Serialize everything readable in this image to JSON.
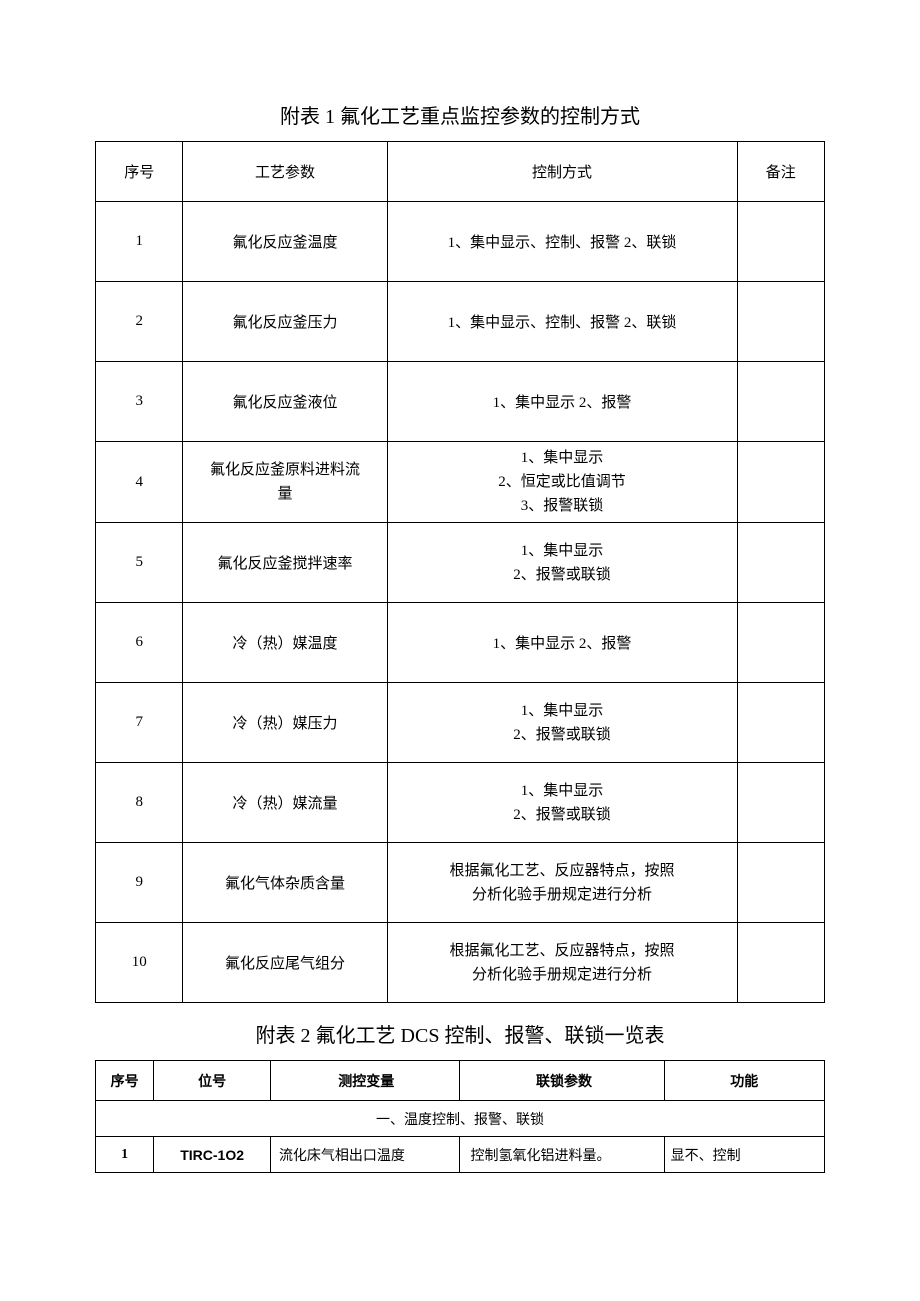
{
  "table1": {
    "title": "附表 1 氟化工艺重点监控参数的控制方式",
    "headers": {
      "no": "序号",
      "param": "工艺参数",
      "control": "控制方式",
      "remark": "备注"
    },
    "rows": [
      {
        "no": "1",
        "param": "氟化反应釜温度",
        "control": "1、集中显示、控制、报警 2、联锁",
        "remark": ""
      },
      {
        "no": "2",
        "param": "氟化反应釜压力",
        "control": "1、集中显示、控制、报警 2、联锁",
        "remark": ""
      },
      {
        "no": "3",
        "param": "氟化反应釜液位",
        "control": "1、集中显示 2、报警",
        "remark": ""
      },
      {
        "no": "4",
        "param": "氟化反应釜原料进料流\n量",
        "control": "1、集中显示\n2、恒定或比值调节\n3、报警联锁",
        "remark": ""
      },
      {
        "no": "5",
        "param": "氟化反应釜搅拌速率",
        "control": "1、集中显示\n2、报警或联锁",
        "remark": ""
      },
      {
        "no": "6",
        "param": "冷（热）媒温度",
        "control": "1、集中显示 2、报警",
        "remark": ""
      },
      {
        "no": "7",
        "param": "冷（热）媒压力",
        "control": "1、集中显示\n2、报警或联锁",
        "remark": ""
      },
      {
        "no": "8",
        "param": "冷（热）媒流量",
        "control": "1、集中显示\n2、报警或联锁",
        "remark": ""
      },
      {
        "no": "9",
        "param": "氟化气体杂质含量",
        "control": "根据氟化工艺、反应器特点，按照\n分析化验手册规定进行分析",
        "remark": ""
      },
      {
        "no": "10",
        "param": "氟化反应尾气组分",
        "control": "根据氟化工艺、反应器特点，按照\n分析化验手册规定进行分析",
        "remark": ""
      }
    ],
    "styling": {
      "border_color": "#000000",
      "text_color": "#000000",
      "background_color": "#ffffff",
      "title_fontsize": 20,
      "cell_fontsize": 15,
      "header_row_height": 60,
      "body_row_height": 80,
      "col_widths_pct": [
        12,
        28,
        48,
        12
      ]
    }
  },
  "table2": {
    "title": "附表 2 氟化工艺 DCS 控制、报警、联锁一览表",
    "headers": {
      "no": "序号",
      "tag": "位号",
      "var": "测控变量",
      "interlock": "联锁参数",
      "func": "功能"
    },
    "section_header": "一、温度控制、报警、联锁",
    "rows": [
      {
        "no": "1",
        "tag": "TIRC-1O2",
        "var": "流化床气相出口温度",
        "interlock": "控制氢氧化铝进料量。",
        "func": "显不、控制"
      }
    ],
    "styling": {
      "border_color": "#000000",
      "text_color": "#000000",
      "background_color": "#ffffff",
      "title_fontsize": 20,
      "header_fontsize": 14,
      "cell_fontsize": 14,
      "header_row_height": 40,
      "body_row_height": 36,
      "col_widths_pct": [
        8,
        16,
        26,
        28,
        22
      ]
    }
  }
}
